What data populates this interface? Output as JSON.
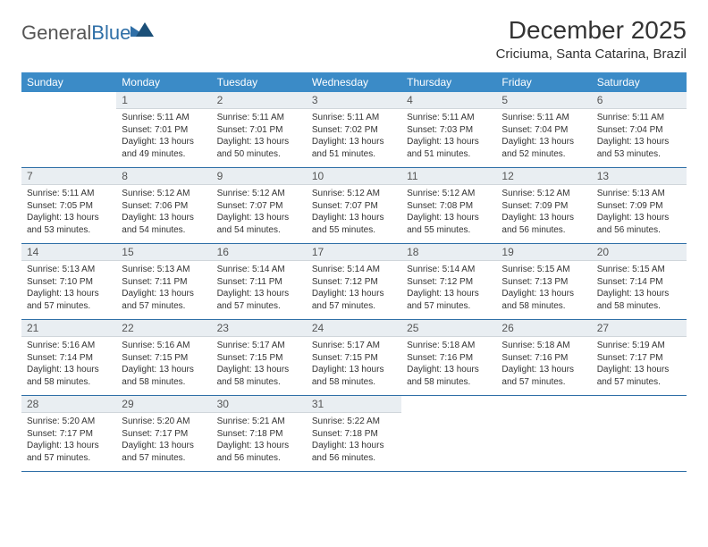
{
  "logo": {
    "text_a": "General",
    "text_b": "Blue"
  },
  "title": "December 2025",
  "location": "Criciuma, Santa Catarina, Brazil",
  "colors": {
    "header_bg": "#3b8bc7",
    "header_fg": "#ffffff",
    "daynum_bg": "#e9eef2",
    "row_divider": "#2f6fa7",
    "logo_blue": "#2f6fa7"
  },
  "weekdays": [
    "Sunday",
    "Monday",
    "Tuesday",
    "Wednesday",
    "Thursday",
    "Friday",
    "Saturday"
  ],
  "weeks": [
    [
      {
        "n": "",
        "sunrise": "",
        "sunset": "",
        "daylight": "",
        "empty": true
      },
      {
        "n": "1",
        "sunrise": "Sunrise: 5:11 AM",
        "sunset": "Sunset: 7:01 PM",
        "daylight": "Daylight: 13 hours and 49 minutes."
      },
      {
        "n": "2",
        "sunrise": "Sunrise: 5:11 AM",
        "sunset": "Sunset: 7:01 PM",
        "daylight": "Daylight: 13 hours and 50 minutes."
      },
      {
        "n": "3",
        "sunrise": "Sunrise: 5:11 AM",
        "sunset": "Sunset: 7:02 PM",
        "daylight": "Daylight: 13 hours and 51 minutes."
      },
      {
        "n": "4",
        "sunrise": "Sunrise: 5:11 AM",
        "sunset": "Sunset: 7:03 PM",
        "daylight": "Daylight: 13 hours and 51 minutes."
      },
      {
        "n": "5",
        "sunrise": "Sunrise: 5:11 AM",
        "sunset": "Sunset: 7:04 PM",
        "daylight": "Daylight: 13 hours and 52 minutes."
      },
      {
        "n": "6",
        "sunrise": "Sunrise: 5:11 AM",
        "sunset": "Sunset: 7:04 PM",
        "daylight": "Daylight: 13 hours and 53 minutes."
      }
    ],
    [
      {
        "n": "7",
        "sunrise": "Sunrise: 5:11 AM",
        "sunset": "Sunset: 7:05 PM",
        "daylight": "Daylight: 13 hours and 53 minutes."
      },
      {
        "n": "8",
        "sunrise": "Sunrise: 5:12 AM",
        "sunset": "Sunset: 7:06 PM",
        "daylight": "Daylight: 13 hours and 54 minutes."
      },
      {
        "n": "9",
        "sunrise": "Sunrise: 5:12 AM",
        "sunset": "Sunset: 7:07 PM",
        "daylight": "Daylight: 13 hours and 54 minutes."
      },
      {
        "n": "10",
        "sunrise": "Sunrise: 5:12 AM",
        "sunset": "Sunset: 7:07 PM",
        "daylight": "Daylight: 13 hours and 55 minutes."
      },
      {
        "n": "11",
        "sunrise": "Sunrise: 5:12 AM",
        "sunset": "Sunset: 7:08 PM",
        "daylight": "Daylight: 13 hours and 55 minutes."
      },
      {
        "n": "12",
        "sunrise": "Sunrise: 5:12 AM",
        "sunset": "Sunset: 7:09 PM",
        "daylight": "Daylight: 13 hours and 56 minutes."
      },
      {
        "n": "13",
        "sunrise": "Sunrise: 5:13 AM",
        "sunset": "Sunset: 7:09 PM",
        "daylight": "Daylight: 13 hours and 56 minutes."
      }
    ],
    [
      {
        "n": "14",
        "sunrise": "Sunrise: 5:13 AM",
        "sunset": "Sunset: 7:10 PM",
        "daylight": "Daylight: 13 hours and 57 minutes."
      },
      {
        "n": "15",
        "sunrise": "Sunrise: 5:13 AM",
        "sunset": "Sunset: 7:11 PM",
        "daylight": "Daylight: 13 hours and 57 minutes."
      },
      {
        "n": "16",
        "sunrise": "Sunrise: 5:14 AM",
        "sunset": "Sunset: 7:11 PM",
        "daylight": "Daylight: 13 hours and 57 minutes."
      },
      {
        "n": "17",
        "sunrise": "Sunrise: 5:14 AM",
        "sunset": "Sunset: 7:12 PM",
        "daylight": "Daylight: 13 hours and 57 minutes."
      },
      {
        "n": "18",
        "sunrise": "Sunrise: 5:14 AM",
        "sunset": "Sunset: 7:12 PM",
        "daylight": "Daylight: 13 hours and 57 minutes."
      },
      {
        "n": "19",
        "sunrise": "Sunrise: 5:15 AM",
        "sunset": "Sunset: 7:13 PM",
        "daylight": "Daylight: 13 hours and 58 minutes."
      },
      {
        "n": "20",
        "sunrise": "Sunrise: 5:15 AM",
        "sunset": "Sunset: 7:14 PM",
        "daylight": "Daylight: 13 hours and 58 minutes."
      }
    ],
    [
      {
        "n": "21",
        "sunrise": "Sunrise: 5:16 AM",
        "sunset": "Sunset: 7:14 PM",
        "daylight": "Daylight: 13 hours and 58 minutes."
      },
      {
        "n": "22",
        "sunrise": "Sunrise: 5:16 AM",
        "sunset": "Sunset: 7:15 PM",
        "daylight": "Daylight: 13 hours and 58 minutes."
      },
      {
        "n": "23",
        "sunrise": "Sunrise: 5:17 AM",
        "sunset": "Sunset: 7:15 PM",
        "daylight": "Daylight: 13 hours and 58 minutes."
      },
      {
        "n": "24",
        "sunrise": "Sunrise: 5:17 AM",
        "sunset": "Sunset: 7:15 PM",
        "daylight": "Daylight: 13 hours and 58 minutes."
      },
      {
        "n": "25",
        "sunrise": "Sunrise: 5:18 AM",
        "sunset": "Sunset: 7:16 PM",
        "daylight": "Daylight: 13 hours and 58 minutes."
      },
      {
        "n": "26",
        "sunrise": "Sunrise: 5:18 AM",
        "sunset": "Sunset: 7:16 PM",
        "daylight": "Daylight: 13 hours and 57 minutes."
      },
      {
        "n": "27",
        "sunrise": "Sunrise: 5:19 AM",
        "sunset": "Sunset: 7:17 PM",
        "daylight": "Daylight: 13 hours and 57 minutes."
      }
    ],
    [
      {
        "n": "28",
        "sunrise": "Sunrise: 5:20 AM",
        "sunset": "Sunset: 7:17 PM",
        "daylight": "Daylight: 13 hours and 57 minutes."
      },
      {
        "n": "29",
        "sunrise": "Sunrise: 5:20 AM",
        "sunset": "Sunset: 7:17 PM",
        "daylight": "Daylight: 13 hours and 57 minutes."
      },
      {
        "n": "30",
        "sunrise": "Sunrise: 5:21 AM",
        "sunset": "Sunset: 7:18 PM",
        "daylight": "Daylight: 13 hours and 56 minutes."
      },
      {
        "n": "31",
        "sunrise": "Sunrise: 5:22 AM",
        "sunset": "Sunset: 7:18 PM",
        "daylight": "Daylight: 13 hours and 56 minutes."
      },
      {
        "n": "",
        "sunrise": "",
        "sunset": "",
        "daylight": "",
        "empty": true
      },
      {
        "n": "",
        "sunrise": "",
        "sunset": "",
        "daylight": "",
        "empty": true
      },
      {
        "n": "",
        "sunrise": "",
        "sunset": "",
        "daylight": "",
        "empty": true
      }
    ]
  ]
}
